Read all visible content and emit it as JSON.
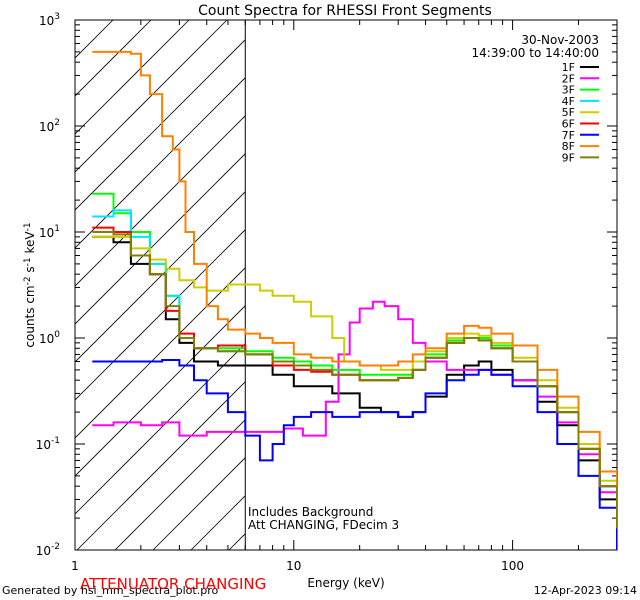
{
  "chart_data": {
    "type": "line",
    "title": "Count Spectra for RHESSI Front Segments",
    "date": "30-Nov-2003",
    "time_range": "14:39:00 to 14:40:00",
    "xlabel": "Energy (keV)",
    "ylabel_parts": [
      "counts cm",
      "-2",
      " s",
      "-1",
      " keV",
      "-1"
    ],
    "xscale": "log",
    "yscale": "log",
    "xlim": [
      1,
      300
    ],
    "ylim": [
      0.01,
      1000
    ],
    "x_ticks": [
      {
        "value": 1,
        "label": "1"
      },
      {
        "value": 10,
        "label": "10"
      },
      {
        "value": 100,
        "label": "100"
      }
    ],
    "y_ticks": [
      {
        "value": 0.01,
        "base": "10",
        "exp": "-2"
      },
      {
        "value": 0.1,
        "base": "10",
        "exp": "-1"
      },
      {
        "value": 1,
        "base": "10",
        "exp": "0"
      },
      {
        "value": 10,
        "base": "10",
        "exp": "1"
      },
      {
        "value": 100,
        "base": "10",
        "exp": "2"
      },
      {
        "value": 1000,
        "base": "10",
        "exp": "3"
      }
    ],
    "attenuator_region_max_kev": 6,
    "notes": [
      "Includes Background",
      "Att CHANGING, FDecim 3"
    ],
    "legend_position": "top-right",
    "series": [
      {
        "name": "1F",
        "color": "#000000",
        "x": [
          1.2,
          1.5,
          1.8,
          2.2,
          2.6,
          3.0,
          3.5,
          4.5,
          6,
          8,
          10,
          12,
          15,
          20,
          25,
          30,
          35,
          40,
          50,
          60,
          70,
          80,
          100,
          130,
          160,
          200,
          250,
          300
        ],
        "y": [
          9,
          8,
          5,
          4,
          1.5,
          0.9,
          0.6,
          0.55,
          0.55,
          0.45,
          0.35,
          0.35,
          0.3,
          0.22,
          0.2,
          0.18,
          0.2,
          0.28,
          0.45,
          0.55,
          0.6,
          0.5,
          0.4,
          0.25,
          0.15,
          0.07,
          0.03,
          0.013
        ]
      },
      {
        "name": "2F",
        "color": "#ff00ff",
        "x": [
          1.2,
          1.5,
          2.0,
          2.5,
          3.0,
          4.0,
          5.0,
          6,
          7,
          8,
          9,
          10,
          11,
          12,
          14,
          16,
          18,
          20,
          23,
          26,
          30,
          35,
          40,
          50,
          60,
          70,
          80,
          100,
          130,
          160,
          200,
          250,
          300
        ],
        "y": [
          0.15,
          0.16,
          0.15,
          0.16,
          0.12,
          0.13,
          0.13,
          0.13,
          0.13,
          0.13,
          0.14,
          0.14,
          0.12,
          0.12,
          0.25,
          0.7,
          1.4,
          1.9,
          2.2,
          2.0,
          1.5,
          0.9,
          0.6,
          0.5,
          0.5,
          0.5,
          0.45,
          0.4,
          0.28,
          0.16,
          0.08,
          0.035,
          0.015
        ]
      },
      {
        "name": "3F",
        "color": "#00ff00",
        "x": [
          1.2,
          1.5,
          1.8,
          2.2,
          2.6,
          3.0,
          3.5,
          4.5,
          6,
          8,
          10,
          12,
          15,
          20,
          25,
          30,
          35,
          40,
          50,
          60,
          70,
          80,
          100,
          130,
          160,
          200,
          250,
          300
        ],
        "y": [
          23,
          15,
          10,
          5,
          2.5,
          1.0,
          0.8,
          0.8,
          0.75,
          0.65,
          0.6,
          0.55,
          0.5,
          0.45,
          0.45,
          0.45,
          0.5,
          0.7,
          0.95,
          1.0,
          1.0,
          0.85,
          0.6,
          0.35,
          0.2,
          0.09,
          0.04,
          0.016
        ]
      },
      {
        "name": "4F",
        "color": "#00e5ff",
        "x": [
          1.2,
          1.5,
          1.8,
          2.2,
          2.6,
          3.0,
          3.5,
          4.5,
          6,
          8,
          10,
          12,
          15,
          20,
          25,
          30,
          35,
          40,
          50,
          60,
          70,
          80,
          100,
          130,
          160,
          200,
          250,
          300
        ],
        "y": [
          14,
          16,
          9,
          5,
          2.5,
          1.0,
          0.8,
          0.75,
          0.7,
          0.6,
          0.55,
          0.5,
          0.45,
          0.4,
          0.4,
          0.42,
          0.5,
          0.65,
          0.9,
          1.0,
          0.95,
          0.8,
          0.6,
          0.35,
          0.2,
          0.09,
          0.04,
          0.015
        ]
      },
      {
        "name": "5F",
        "color": "#cccc00",
        "x": [
          1.2,
          1.5,
          1.8,
          2.2,
          2.6,
          3.0,
          3.5,
          4.0,
          5.0,
          6,
          7,
          8,
          10,
          12,
          15,
          17,
          20,
          25,
          30,
          35,
          40,
          50,
          60,
          70,
          80,
          100,
          130,
          160,
          200,
          250,
          300
        ],
        "y": [
          9,
          9,
          7,
          5.5,
          4.5,
          3.5,
          3.0,
          2.8,
          3.2,
          3.2,
          2.8,
          2.5,
          2.2,
          1.6,
          1.0,
          0.6,
          0.55,
          0.5,
          0.5,
          0.6,
          0.75,
          1.0,
          1.1,
          1.05,
          0.9,
          0.65,
          0.4,
          0.22,
          0.1,
          0.045,
          0.018
        ]
      },
      {
        "name": "6F",
        "color": "#ff0000",
        "x": [
          1.2,
          1.5,
          1.8,
          2.2,
          2.6,
          3.0,
          3.5,
          4.5,
          6,
          8,
          10,
          12,
          15,
          20,
          25,
          30,
          35,
          40,
          50,
          60,
          70,
          80,
          100,
          130,
          160,
          200,
          250,
          300
        ],
        "y": [
          11,
          10,
          6,
          4,
          1.8,
          1.1,
          0.8,
          0.85,
          0.7,
          0.55,
          0.5,
          0.48,
          0.45,
          0.4,
          0.4,
          0.42,
          0.5,
          0.65,
          0.9,
          1.0,
          0.95,
          0.8,
          0.6,
          0.35,
          0.2,
          0.09,
          0.04,
          0.016
        ]
      },
      {
        "name": "7F",
        "color": "#0000ff",
        "x": [
          1.2,
          1.5,
          2.0,
          2.5,
          3.0,
          3.5,
          4.0,
          5.0,
          6,
          7,
          8,
          9,
          10,
          12,
          15,
          20,
          25,
          30,
          35,
          40,
          50,
          60,
          70,
          80,
          100,
          130,
          160,
          200,
          250,
          300
        ],
        "y": [
          0.6,
          0.6,
          0.6,
          0.62,
          0.55,
          0.4,
          0.3,
          0.2,
          0.12,
          0.07,
          0.1,
          0.15,
          0.18,
          0.2,
          0.18,
          0.2,
          0.2,
          0.18,
          0.2,
          0.3,
          0.4,
          0.45,
          0.5,
          0.45,
          0.35,
          0.2,
          0.1,
          0.05,
          0.025,
          0.01
        ]
      },
      {
        "name": "8F",
        "color": "#ff8000",
        "x": [
          1.2,
          1.5,
          1.8,
          2.0,
          2.2,
          2.5,
          2.8,
          3.0,
          3.2,
          3.5,
          4.0,
          4.5,
          5,
          6,
          7,
          8,
          10,
          12,
          15,
          20,
          25,
          30,
          35,
          40,
          50,
          60,
          70,
          80,
          100,
          130,
          160,
          200,
          250,
          300
        ],
        "y": [
          500,
          500,
          480,
          300,
          200,
          80,
          60,
          30,
          10,
          5,
          2.0,
          1.5,
          1.2,
          1.1,
          1.0,
          0.9,
          0.7,
          0.65,
          0.6,
          0.55,
          0.55,
          0.6,
          0.7,
          0.8,
          1.1,
          1.3,
          1.25,
          1.1,
          0.85,
          0.5,
          0.28,
          0.13,
          0.055,
          0.02
        ]
      },
      {
        "name": "9F",
        "color": "#808000",
        "x": [
          1.2,
          1.5,
          1.8,
          2.2,
          2.6,
          3.0,
          3.5,
          4.5,
          6,
          8,
          10,
          12,
          15,
          20,
          25,
          30,
          35,
          40,
          50,
          60,
          70,
          80,
          100,
          130,
          160,
          200,
          250,
          300
        ],
        "y": [
          10,
          9.5,
          6,
          4,
          2.0,
          1.0,
          0.8,
          0.75,
          0.7,
          0.6,
          0.55,
          0.5,
          0.45,
          0.4,
          0.4,
          0.42,
          0.5,
          0.65,
          0.9,
          1.0,
          0.95,
          0.8,
          0.6,
          0.35,
          0.2,
          0.09,
          0.04,
          0.016
        ]
      }
    ]
  },
  "footer": {
    "generated_by": "Generated by hsi_mm_spectra_plot.pro",
    "attenuator_status": "ATTENUATOR CHANGING",
    "render_date": "12-Apr-2023 09:14"
  }
}
